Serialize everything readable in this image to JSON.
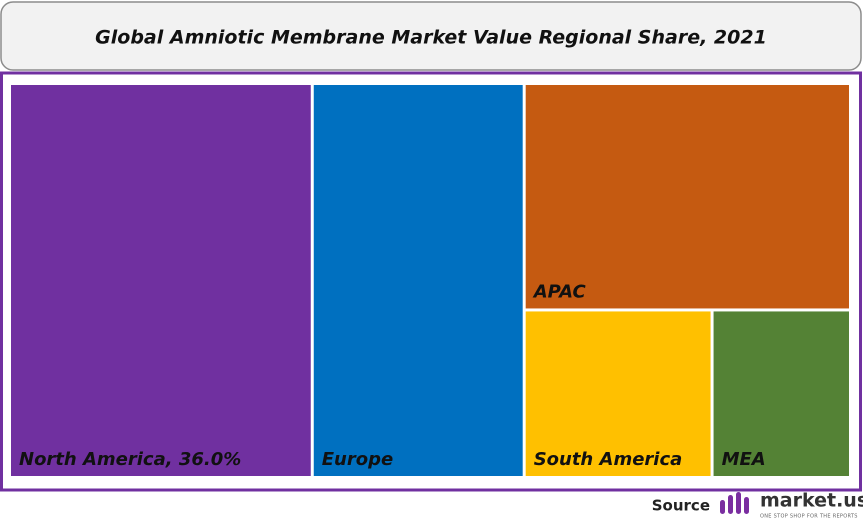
{
  "chart_data": {
    "type": "treemap",
    "title": "Global Amniotic Membrane  Market Value Regional Share, 2021",
    "categories": [
      "North America, 36.0%",
      "Europe",
      "APAC",
      "South America",
      "MEA"
    ],
    "values": [
      36.0,
      25.2,
      22.3,
      9.5,
      7.0
    ],
    "colors": [
      "#7030a0",
      "#0070c0",
      "#c55a11",
      "#ffc000",
      "#548235"
    ]
  },
  "source": {
    "label": "Source",
    "brand": "market.us",
    "tagline": "ONE STOP SHOP FOR THE REPORTS"
  }
}
